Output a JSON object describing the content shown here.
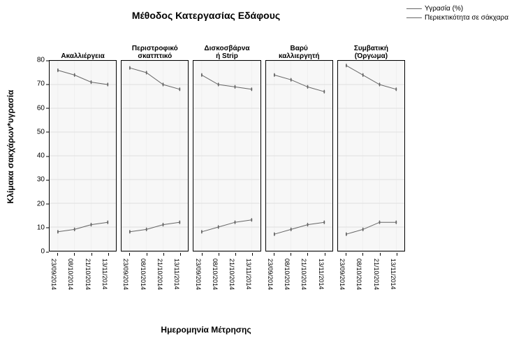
{
  "main_title": "Μέθοδος Κατεργασίας Εδάφους",
  "y_axis_label": "Κλίμακα σακχάρων*υγρασία",
  "x_axis_label": "Ημερομηνία Μέτρησης",
  "ylim": [
    0,
    80
  ],
  "y_ticks": [
    0,
    10,
    20,
    30,
    40,
    50,
    60,
    70,
    80
  ],
  "x_categories": [
    "23/09/2014",
    "08/10/2014",
    "21/10/2014",
    "13/11/2014"
  ],
  "grid_color": "#e4e4e4",
  "plot_bg": "#f7f7f7",
  "border_color": "#000000",
  "line_color": "#666666",
  "legend": [
    {
      "label": "Υγρασία (%)",
      "color": "#666666"
    },
    {
      "label": "Περιεκτικότητα σε σάκχαρα",
      "color": "#666666"
    }
  ],
  "panels": [
    {
      "title": "Ακαλλιέργεια",
      "series": [
        {
          "name": "moisture",
          "values": [
            76,
            74,
            71,
            70
          ]
        },
        {
          "name": "sugar",
          "values": [
            8,
            9,
            11,
            12
          ]
        }
      ]
    },
    {
      "title": "Περιστροφικό\nσκατπτικό",
      "series": [
        {
          "name": "moisture",
          "values": [
            77,
            75,
            70,
            68
          ]
        },
        {
          "name": "sugar",
          "values": [
            8,
            9,
            11,
            12
          ]
        }
      ]
    },
    {
      "title": "Δισκοσβάρνα\nή Strip",
      "series": [
        {
          "name": "moisture",
          "values": [
            74,
            70,
            69,
            68
          ]
        },
        {
          "name": "sugar",
          "values": [
            8,
            10,
            12,
            13
          ]
        }
      ]
    },
    {
      "title": "Βαρύ\nκαλλιεργητή",
      "series": [
        {
          "name": "moisture",
          "values": [
            74,
            72,
            69,
            67
          ]
        },
        {
          "name": "sugar",
          "values": [
            7,
            9,
            11,
            12
          ]
        }
      ]
    },
    {
      "title": "Συμβατική\n(Όργωμα)",
      "series": [
        {
          "name": "moisture",
          "values": [
            78,
            74,
            70,
            68
          ]
        },
        {
          "name": "sugar",
          "values": [
            7,
            9,
            12,
            12
          ]
        }
      ]
    }
  ]
}
